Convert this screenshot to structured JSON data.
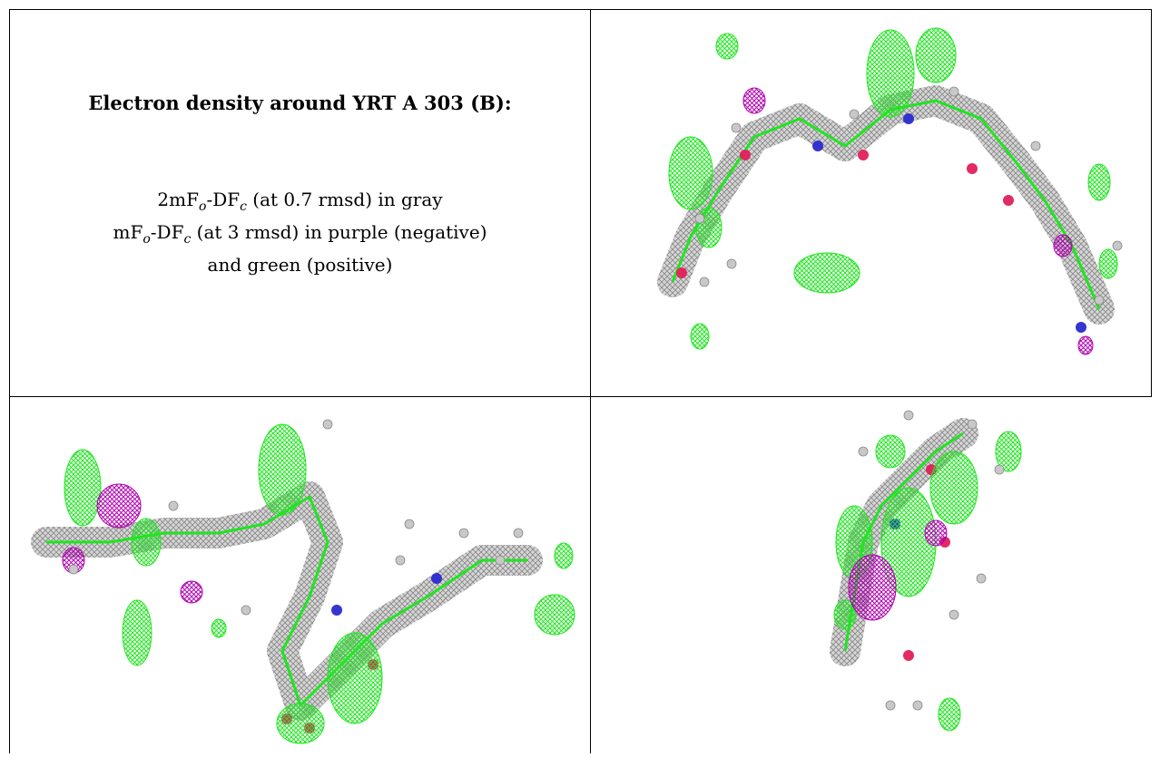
{
  "caption": {
    "title": "Electron density around YRT A 303 (B):",
    "line1_prefix": "2mF",
    "line1_sub1": "o",
    "line1_mid": "-DF",
    "line1_sub2": "c",
    "line1_suffix": " (at 0.7 rmsd) in gray",
    "line2_prefix": "mF",
    "line2_sub1": "o",
    "line2_mid": "-DF",
    "line2_sub2": "c",
    "line2_suffix": " (at 3 rmsd) in purple (negative)",
    "line3": "and green (positive)"
  },
  "colors": {
    "map_2fo": "#8a8a8a",
    "map_positive": "#1ee61e",
    "map_negative": "#b000b0",
    "nitrogen": "#2a2ad0",
    "oxygen": "#e0205a",
    "hydrogen": "#c8c8c8",
    "background": "#ffffff"
  },
  "panels": [
    {
      "name": "density-view-top-right"
    },
    {
      "name": "density-view-bottom-left"
    },
    {
      "name": "density-view-bottom-right"
    }
  ]
}
